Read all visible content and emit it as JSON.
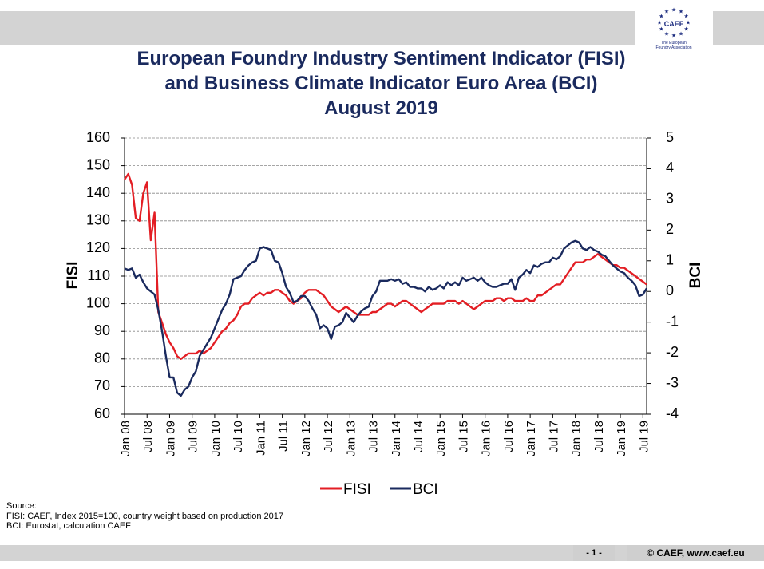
{
  "header": {
    "title_lines": [
      "European Foundry Industry Sentiment Indicator (FISI)",
      "and Business Climate Indicator Euro Area (BCI)",
      "August 2019"
    ]
  },
  "logo": {
    "text": "CAEF",
    "subtitle_1": "The European",
    "subtitle_2": "Foundry Association",
    "star_color": "#1a2a7e"
  },
  "source": {
    "label": "Source:",
    "line1": "FISI:  CAEF, Index 2015=100, country weight based on production 2017",
    "line2": "BCI: Eurostat, calculation CAEF"
  },
  "footer": {
    "page": "- 1 -",
    "copyright": "© CAEF,  www.caef.eu"
  },
  "chart_data": {
    "type": "line",
    "xlabel": "",
    "ylabel": "FISI",
    "y2label": "BCI",
    "ylim": [
      60,
      160
    ],
    "yticks": [
      60,
      70,
      80,
      90,
      100,
      110,
      120,
      130,
      140,
      150,
      160
    ],
    "y2lim": [
      -4,
      5
    ],
    "y2ticks": [
      -4,
      -3,
      -2,
      -1,
      0,
      1,
      2,
      3,
      4,
      5
    ],
    "x_start": "Jan 08",
    "x_end": "Aug 19",
    "xtick_labels": [
      "Jan 08",
      "Jul 08",
      "Jan 09",
      "Jul 09",
      "Jan 10",
      "Jul 10",
      "Jan 11",
      "Jul 11",
      "Jan 12",
      "Jul 12",
      "Jan 13",
      "Jul 13",
      "Jan 14",
      "Jul 14",
      "Jan 15",
      "Jul 15",
      "Jan 16",
      "Jul 16",
      "Jan 17",
      "Jul 17",
      "Jan 18",
      "Jul 18",
      "Jan 19",
      "Jul 19"
    ],
    "grid": "horizontal dashed",
    "legend_position": "bottom-center",
    "series": [
      {
        "name": "FISI",
        "axis": "left",
        "color": "#e31e24",
        "points": [
          [
            "Jan 08",
            145
          ],
          [
            "Feb 08",
            147
          ],
          [
            "Mar 08",
            143
          ],
          [
            "Apr 08",
            131
          ],
          [
            "May 08",
            130
          ],
          [
            "Jun 08",
            140
          ],
          [
            "Jul 08",
            144
          ],
          [
            "Aug 08",
            123
          ],
          [
            "Sep 08",
            133
          ],
          [
            "Oct 08",
            97
          ],
          [
            "Nov 08",
            93
          ],
          [
            "Dec 08",
            89
          ],
          [
            "Jan 09",
            86
          ],
          [
            "Feb 09",
            84
          ],
          [
            "Mar 09",
            81
          ],
          [
            "Apr 09",
            80
          ],
          [
            "May 09",
            81
          ],
          [
            "Jun 09",
            82
          ],
          [
            "Jul 09",
            82
          ],
          [
            "Aug 09",
            82
          ],
          [
            "Sep 09",
            83
          ],
          [
            "Oct 09",
            82
          ],
          [
            "Nov 09",
            83
          ],
          [
            "Dec 09",
            84
          ],
          [
            "Jan 10",
            86
          ],
          [
            "Feb 10",
            88
          ],
          [
            "Mar 10",
            90
          ],
          [
            "Apr 10",
            91
          ],
          [
            "May 10",
            93
          ],
          [
            "Jun 10",
            94
          ],
          [
            "Jul 10",
            96
          ],
          [
            "Aug 10",
            99
          ],
          [
            "Sep 10",
            100
          ],
          [
            "Oct 10",
            100
          ],
          [
            "Nov 10",
            102
          ],
          [
            "Dec 10",
            103
          ],
          [
            "Jan 11",
            104
          ],
          [
            "Feb 11",
            103
          ],
          [
            "Mar 11",
            104
          ],
          [
            "Apr 11",
            104
          ],
          [
            "May 11",
            105
          ],
          [
            "Jun 11",
            105
          ],
          [
            "Jul 11",
            104
          ],
          [
            "Aug 11",
            103
          ],
          [
            "Sep 11",
            101
          ],
          [
            "Oct 11",
            100
          ],
          [
            "Nov 11",
            101
          ],
          [
            "Dec 11",
            102
          ],
          [
            "Jan 12",
            104
          ],
          [
            "Feb 12",
            105
          ],
          [
            "Mar 12",
            105
          ],
          [
            "Apr 12",
            105
          ],
          [
            "May 12",
            104
          ],
          [
            "Jun 12",
            103
          ],
          [
            "Jul 12",
            101
          ],
          [
            "Aug 12",
            99
          ],
          [
            "Sep 12",
            98
          ],
          [
            "Oct 12",
            97
          ],
          [
            "Nov 12",
            98
          ],
          [
            "Dec 12",
            99
          ],
          [
            "Jan 13",
            98
          ],
          [
            "Feb 13",
            97
          ],
          [
            "Mar 13",
            96
          ],
          [
            "Apr 13",
            96
          ],
          [
            "May 13",
            96
          ],
          [
            "Jun 13",
            96
          ],
          [
            "Jul 13",
            97
          ],
          [
            "Aug 13",
            97
          ],
          [
            "Sep 13",
            98
          ],
          [
            "Oct 13",
            99
          ],
          [
            "Nov 13",
            100
          ],
          [
            "Dec 13",
            100
          ],
          [
            "Jan 14",
            99
          ],
          [
            "Feb 14",
            100
          ],
          [
            "Mar 14",
            101
          ],
          [
            "Apr 14",
            101
          ],
          [
            "May 14",
            100
          ],
          [
            "Jun 14",
            99
          ],
          [
            "Jul 14",
            98
          ],
          [
            "Aug 14",
            97
          ],
          [
            "Sep 14",
            98
          ],
          [
            "Oct 14",
            99
          ],
          [
            "Nov 14",
            100
          ],
          [
            "Dec 14",
            100
          ],
          [
            "Jan 15",
            100
          ],
          [
            "Feb 15",
            100
          ],
          [
            "Mar 15",
            101
          ],
          [
            "Apr 15",
            101
          ],
          [
            "May 15",
            101
          ],
          [
            "Jun 15",
            100
          ],
          [
            "Jul 15",
            101
          ],
          [
            "Aug 15",
            100
          ],
          [
            "Sep 15",
            99
          ],
          [
            "Oct 15",
            98
          ],
          [
            "Nov 15",
            99
          ],
          [
            "Dec 15",
            100
          ],
          [
            "Jan 16",
            101
          ],
          [
            "Feb 16",
            101
          ],
          [
            "Mar 16",
            101
          ],
          [
            "Apr 16",
            102
          ],
          [
            "May 16",
            102
          ],
          [
            "Jun 16",
            101
          ],
          [
            "Jul 16",
            102
          ],
          [
            "Aug 16",
            102
          ],
          [
            "Sep 16",
            101
          ],
          [
            "Oct 16",
            101
          ],
          [
            "Nov 16",
            101
          ],
          [
            "Dec 16",
            102
          ],
          [
            "Jan 17",
            101
          ],
          [
            "Feb 17",
            101
          ],
          [
            "Mar 17",
            103
          ],
          [
            "Apr 17",
            103
          ],
          [
            "May 17",
            104
          ],
          [
            "Jun 17",
            105
          ],
          [
            "Jul 17",
            106
          ],
          [
            "Aug 17",
            107
          ],
          [
            "Sep 17",
            107
          ],
          [
            "Oct 17",
            109
          ],
          [
            "Nov 17",
            111
          ],
          [
            "Dec 17",
            113
          ],
          [
            "Jan 18",
            115
          ],
          [
            "Feb 18",
            115
          ],
          [
            "Mar 18",
            115
          ],
          [
            "Apr 18",
            116
          ],
          [
            "May 18",
            116
          ],
          [
            "Jun 18",
            117
          ],
          [
            "Jul 18",
            118
          ],
          [
            "Aug 18",
            117
          ],
          [
            "Sep 18",
            116
          ],
          [
            "Oct 18",
            115
          ],
          [
            "Nov 18",
            114
          ],
          [
            "Dec 18",
            114
          ],
          [
            "Jan 19",
            113
          ],
          [
            "Feb 19",
            113
          ],
          [
            "Mar 19",
            112
          ],
          [
            "Apr 19",
            111
          ],
          [
            "May 19",
            110
          ],
          [
            "Jun 19",
            109
          ],
          [
            "Jul 19",
            108
          ],
          [
            "Aug 19",
            107
          ]
        ]
      },
      {
        "name": "BCI",
        "axis": "right",
        "color": "#1a2a5e",
        "points": [
          [
            "Jan 08",
            0.75
          ],
          [
            "Feb 08",
            0.7
          ],
          [
            "Mar 08",
            0.75
          ],
          [
            "Apr 08",
            0.45
          ],
          [
            "May 08",
            0.55
          ],
          [
            "Jun 08",
            0.3
          ],
          [
            "Jul 08",
            0.1
          ],
          [
            "Aug 08",
            0.0
          ],
          [
            "Sep 08",
            -0.1
          ],
          [
            "Oct 08",
            -0.6
          ],
          [
            "Nov 08",
            -1.3
          ],
          [
            "Dec 08",
            -2.1
          ],
          [
            "Jan 09",
            -2.8
          ],
          [
            "Feb 09",
            -2.8
          ],
          [
            "Mar 09",
            -3.3
          ],
          [
            "Apr 09",
            -3.4
          ],
          [
            "May 09",
            -3.2
          ],
          [
            "Jun 09",
            -3.1
          ],
          [
            "Jul 09",
            -2.8
          ],
          [
            "Aug 09",
            -2.6
          ],
          [
            "Sep 09",
            -2.1
          ],
          [
            "Oct 09",
            -1.9
          ],
          [
            "Nov 09",
            -1.7
          ],
          [
            "Dec 09",
            -1.5
          ],
          [
            "Jan 10",
            -1.2
          ],
          [
            "Feb 10",
            -0.9
          ],
          [
            "Mar 10",
            -0.6
          ],
          [
            "Apr 10",
            -0.4
          ],
          [
            "May 10",
            -0.1
          ],
          [
            "Jun 10",
            0.4
          ],
          [
            "Jul 10",
            0.45
          ],
          [
            "Aug 10",
            0.5
          ],
          [
            "Sep 10",
            0.7
          ],
          [
            "Oct 10",
            0.85
          ],
          [
            "Nov 10",
            0.95
          ],
          [
            "Dec 10",
            1.0
          ],
          [
            "Jan 11",
            1.4
          ],
          [
            "Feb 11",
            1.45
          ],
          [
            "Mar 11",
            1.4
          ],
          [
            "Apr 11",
            1.35
          ],
          [
            "May 11",
            1.0
          ],
          [
            "Jun 11",
            0.95
          ],
          [
            "Jul 11",
            0.6
          ],
          [
            "Aug 11",
            0.15
          ],
          [
            "Sep 11",
            -0.05
          ],
          [
            "Oct 11",
            -0.35
          ],
          [
            "Nov 11",
            -0.3
          ],
          [
            "Dec 11",
            -0.15
          ],
          [
            "Jan 12",
            -0.15
          ],
          [
            "Feb 12",
            -0.3
          ],
          [
            "Mar 12",
            -0.55
          ],
          [
            "Apr 12",
            -0.75
          ],
          [
            "May 12",
            -1.2
          ],
          [
            "Jun 12",
            -1.1
          ],
          [
            "Jul 12",
            -1.2
          ],
          [
            "Aug 12",
            -1.55
          ],
          [
            "Sep 12",
            -1.15
          ],
          [
            "Oct 12",
            -1.1
          ],
          [
            "Nov 12",
            -1.0
          ],
          [
            "Dec 12",
            -0.7
          ],
          [
            "Jan 13",
            -0.85
          ],
          [
            "Feb 13",
            -1.0
          ],
          [
            "Mar 13",
            -0.8
          ],
          [
            "Apr 13",
            -0.65
          ],
          [
            "May 13",
            -0.55
          ],
          [
            "Jun 13",
            -0.5
          ],
          [
            "Jul 13",
            -0.15
          ],
          [
            "Aug 13",
            0.0
          ],
          [
            "Sep 13",
            0.35
          ],
          [
            "Oct 13",
            0.35
          ],
          [
            "Nov 13",
            0.35
          ],
          [
            "Dec 13",
            0.4
          ],
          [
            "Jan 14",
            0.35
          ],
          [
            "Feb 14",
            0.4
          ],
          [
            "Mar 14",
            0.25
          ],
          [
            "Apr 14",
            0.3
          ],
          [
            "May 14",
            0.15
          ],
          [
            "Jun 14",
            0.15
          ],
          [
            "Jul 14",
            0.1
          ],
          [
            "Aug 14",
            0.1
          ],
          [
            "Sep 14",
            0.0
          ],
          [
            "Oct 14",
            0.15
          ],
          [
            "Nov 14",
            0.05
          ],
          [
            "Dec 14",
            0.1
          ],
          [
            "Jan 15",
            0.2
          ],
          [
            "Feb 15",
            0.1
          ],
          [
            "Mar 15",
            0.3
          ],
          [
            "Apr 15",
            0.2
          ],
          [
            "May 15",
            0.3
          ],
          [
            "Jun 15",
            0.2
          ],
          [
            "Jul 15",
            0.45
          ],
          [
            "Aug 15",
            0.35
          ],
          [
            "Sep 15",
            0.4
          ],
          [
            "Oct 15",
            0.45
          ],
          [
            "Nov 15",
            0.35
          ],
          [
            "Dec 15",
            0.45
          ],
          [
            "Jan 16",
            0.3
          ],
          [
            "Feb 16",
            0.2
          ],
          [
            "Mar 16",
            0.15
          ],
          [
            "Apr 16",
            0.15
          ],
          [
            "May 16",
            0.2
          ],
          [
            "Jun 16",
            0.25
          ],
          [
            "Jul 16",
            0.25
          ],
          [
            "Aug 16",
            0.4
          ],
          [
            "Sep 16",
            0.05
          ],
          [
            "Oct 16",
            0.45
          ],
          [
            "Nov 16",
            0.55
          ],
          [
            "Dec 16",
            0.7
          ],
          [
            "Jan 17",
            0.6
          ],
          [
            "Feb 17",
            0.85
          ],
          [
            "Mar 17",
            0.8
          ],
          [
            "Apr 17",
            0.9
          ],
          [
            "May 17",
            0.95
          ],
          [
            "Jun 17",
            0.95
          ],
          [
            "Jul 17",
            1.1
          ],
          [
            "Aug 17",
            1.05
          ],
          [
            "Sep 17",
            1.15
          ],
          [
            "Oct 17",
            1.4
          ],
          [
            "Nov 17",
            1.5
          ],
          [
            "Dec 17",
            1.6
          ],
          [
            "Jan 18",
            1.65
          ],
          [
            "Feb 18",
            1.6
          ],
          [
            "Mar 18",
            1.4
          ],
          [
            "Apr 18",
            1.35
          ],
          [
            "May 18",
            1.45
          ],
          [
            "Jun 18",
            1.35
          ],
          [
            "Jul 18",
            1.3
          ],
          [
            "Aug 18",
            1.2
          ],
          [
            "Sep 18",
            1.15
          ],
          [
            "Oct 18",
            1.0
          ],
          [
            "Nov 18",
            0.85
          ],
          [
            "Dec 18",
            0.75
          ],
          [
            "Jan 19",
            0.65
          ],
          [
            "Feb 19",
            0.6
          ],
          [
            "Mar 19",
            0.45
          ],
          [
            "Apr 19",
            0.35
          ],
          [
            "May 19",
            0.2
          ],
          [
            "Jun 19",
            -0.15
          ],
          [
            "Jul 19",
            -0.1
          ],
          [
            "Aug 19",
            0.1
          ]
        ]
      }
    ]
  }
}
